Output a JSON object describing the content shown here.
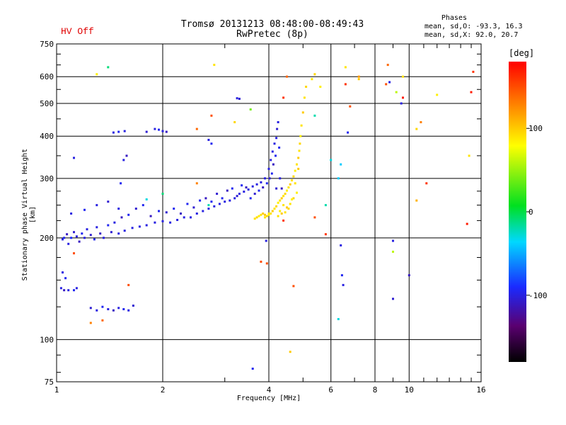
{
  "header": {
    "hv_status": "HV Off",
    "title_line1": "Tromsø 20131213 08:48:00-08:49:43",
    "title_line2": "RwPretec (8p)",
    "phases_title": "Phases",
    "phases_line1": "mean, sd,O: -93.3, 16.3",
    "phases_line2": "mean, sd,X:  92.0, 20.7"
  },
  "colors": {
    "hv_text": "#e00000",
    "grid": "#000000",
    "dominant_trace": "#1f3fe6",
    "f2_trace": "#e6e62a"
  },
  "chart_data": {
    "type": "scatter",
    "xlabel": "Frequency [MHz]",
    "ylabel": "Stationary phase Virtual Height [km]",
    "x_scale": "log",
    "y_scale": "log",
    "xlim": [
      1,
      16
    ],
    "ylim": [
      75,
      750
    ],
    "xticks": [
      1,
      2,
      4,
      6,
      8,
      10,
      16
    ],
    "xtick_labels": [
      "1",
      "2",
      "4",
      "6",
      "8",
      "10",
      "16"
    ],
    "yticks": [
      75,
      100,
      200,
      300,
      400,
      500,
      600,
      750
    ],
    "ytick_labels": [
      "75",
      "100",
      "200",
      "300",
      "400",
      "500",
      "600",
      "750"
    ],
    "grid": true,
    "colorbar": {
      "label": "[deg]",
      "range": [
        -180,
        180
      ],
      "ticks": [
        100,
        0,
        -100
      ],
      "tick_labels": [
        "100",
        "0",
        "-100"
      ]
    },
    "series": [
      {
        "points": [
          [
            1.04,
            198,
            -100
          ],
          [
            1.05,
            200,
            -95
          ],
          [
            1.07,
            205,
            -110
          ],
          [
            1.08,
            192,
            -100
          ],
          [
            1.1,
            200,
            -90
          ],
          [
            1.12,
            208,
            -105
          ],
          [
            1.14,
            202,
            -100
          ],
          [
            1.16,
            195,
            -110
          ],
          [
            1.18,
            206,
            -95
          ],
          [
            1.2,
            200,
            -100
          ],
          [
            1.22,
            212,
            -100
          ],
          [
            1.25,
            204,
            -105
          ],
          [
            1.28,
            198,
            -95
          ],
          [
            1.3,
            215,
            -100
          ],
          [
            1.33,
            206,
            -110
          ],
          [
            1.36,
            200,
            -100
          ],
          [
            1.4,
            218,
            -95
          ],
          [
            1.43,
            208,
            -105
          ],
          [
            1.46,
            222,
            -100
          ],
          [
            1.5,
            206,
            -100
          ],
          [
            1.53,
            230,
            -110
          ],
          [
            1.56,
            210,
            -100
          ],
          [
            1.6,
            234,
            -95
          ],
          [
            1.64,
            214,
            -100
          ],
          [
            1.68,
            244,
            -105
          ],
          [
            1.72,
            216,
            -100
          ],
          [
            1.76,
            250,
            -95
          ],
          [
            1.8,
            218,
            -100
          ],
          [
            1.85,
            232,
            -110
          ],
          [
            1.9,
            222,
            -100
          ],
          [
            1.95,
            240,
            -95
          ],
          [
            2.0,
            224,
            -100
          ],
          [
            2.05,
            238,
            -105
          ],
          [
            2.1,
            222,
            -100
          ],
          [
            2.15,
            244,
            -95
          ],
          [
            2.2,
            226,
            -100
          ],
          [
            2.25,
            236,
            -110
          ],
          [
            2.3,
            230,
            -100
          ],
          [
            2.35,
            252,
            -95
          ],
          [
            2.4,
            230,
            -100
          ],
          [
            2.45,
            246,
            -105
          ],
          [
            2.5,
            236,
            -100
          ],
          [
            2.55,
            258,
            -95
          ],
          [
            2.6,
            240,
            -100
          ],
          [
            2.65,
            262,
            -110
          ],
          [
            2.7,
            244,
            -100
          ],
          [
            2.75,
            256,
            -95
          ],
          [
            2.8,
            248,
            -100
          ],
          [
            2.85,
            270,
            -105
          ],
          [
            2.9,
            252,
            -100
          ],
          [
            2.95,
            262,
            -95
          ],
          [
            3.0,
            256,
            -100
          ],
          [
            3.05,
            276,
            -110
          ],
          [
            3.1,
            258,
            -100
          ],
          [
            3.15,
            280,
            -95
          ],
          [
            3.2,
            262,
            -100
          ],
          [
            3.25,
            266,
            -105
          ],
          [
            3.3,
            270,
            -100
          ],
          [
            3.35,
            286,
            -95
          ],
          [
            3.4,
            274,
            -100
          ],
          [
            3.45,
            282,
            -110
          ],
          [
            3.5,
            278,
            -100
          ],
          [
            3.55,
            262,
            -95
          ],
          [
            3.6,
            284,
            -100
          ],
          [
            3.65,
            270,
            -105
          ],
          [
            3.7,
            288,
            -100
          ],
          [
            3.75,
            276,
            -95
          ],
          [
            3.8,
            292,
            -100
          ],
          [
            3.85,
            282,
            -110
          ],
          [
            3.9,
            300,
            -100
          ],
          [
            3.95,
            290,
            -95
          ],
          [
            4.0,
            320,
            -100
          ],
          [
            4.02,
            300,
            -105
          ],
          [
            4.05,
            340,
            -100
          ],
          [
            4.08,
            310,
            -95
          ],
          [
            4.1,
            360,
            -100
          ],
          [
            4.12,
            330,
            -110
          ],
          [
            4.15,
            380,
            -100
          ],
          [
            4.18,
            350,
            -95
          ],
          [
            4.2,
            395,
            -100
          ],
          [
            4.22,
            420,
            -105
          ],
          [
            4.25,
            440,
            -100
          ],
          [
            4.28,
            370,
            -95
          ],
          [
            4.3,
            300,
            -100
          ],
          [
            4.35,
            280,
            -110
          ],
          [
            1.1,
            236,
            -100
          ],
          [
            1.2,
            242,
            -95
          ],
          [
            1.3,
            250,
            -100
          ],
          [
            1.4,
            256,
            -105
          ],
          [
            1.5,
            244,
            -100
          ],
          [
            1.52,
            290,
            -95
          ],
          [
            1.55,
            340,
            -100
          ],
          [
            1.58,
            350,
            -110
          ],
          [
            1.45,
            410,
            -100
          ],
          [
            1.5,
            412,
            -95
          ],
          [
            1.56,
            414,
            -100
          ],
          [
            1.8,
            412,
            -105
          ],
          [
            1.9,
            420,
            -100
          ],
          [
            1.95,
            418,
            -95
          ],
          [
            2.0,
            414,
            -100
          ],
          [
            2.05,
            412,
            -110
          ],
          [
            2.7,
            390,
            -100
          ],
          [
            2.75,
            380,
            -95
          ],
          [
            3.25,
            518,
            -100
          ],
          [
            3.3,
            516,
            -105
          ],
          [
            1.04,
            158,
            -100
          ],
          [
            1.06,
            152,
            -95
          ],
          [
            1.03,
            142,
            -100
          ],
          [
            1.05,
            140,
            -110
          ],
          [
            1.08,
            140,
            -100
          ],
          [
            1.12,
            140,
            -95
          ],
          [
            1.14,
            142,
            -100
          ],
          [
            1.25,
            124,
            -105
          ],
          [
            1.3,
            122,
            -100
          ],
          [
            1.35,
            125,
            -95
          ],
          [
            1.4,
            123,
            -100
          ],
          [
            1.45,
            122,
            -110
          ],
          [
            1.5,
            124,
            -100
          ],
          [
            1.55,
            123,
            -95
          ],
          [
            1.6,
            122,
            -100
          ],
          [
            1.65,
            126,
            -105
          ],
          [
            1.12,
            345,
            -100
          ],
          [
            3.6,
            82,
            -95
          ],
          [
            3.93,
            196,
            -100
          ],
          [
            4.2,
            280,
            -105
          ],
          [
            6.4,
            190,
            -100
          ],
          [
            6.45,
            155,
            -95
          ],
          [
            6.5,
            145,
            -100
          ],
          [
            9.0,
            132,
            -105
          ],
          [
            9.0,
            196,
            -100
          ],
          [
            6.7,
            410,
            -95
          ],
          [
            9.5,
            500,
            -100
          ],
          [
            10.0,
            155,
            -110
          ],
          [
            8.8,
            578,
            -100
          ]
        ]
      },
      {
        "points": [
          [
            3.65,
            228,
            90
          ],
          [
            3.7,
            230,
            95
          ],
          [
            3.75,
            232,
            85
          ],
          [
            3.8,
            234,
            90
          ],
          [
            3.85,
            236,
            100
          ],
          [
            3.9,
            230,
            90
          ],
          [
            3.95,
            232,
            95
          ],
          [
            4.0,
            234,
            85
          ],
          [
            4.05,
            236,
            90
          ],
          [
            4.1,
            240,
            100
          ],
          [
            4.15,
            244,
            90
          ],
          [
            4.2,
            248,
            95
          ],
          [
            4.25,
            254,
            85
          ],
          [
            4.3,
            258,
            90
          ],
          [
            4.35,
            262,
            100
          ],
          [
            4.4,
            266,
            90
          ],
          [
            4.45,
            270,
            95
          ],
          [
            4.5,
            276,
            85
          ],
          [
            4.55,
            282,
            90
          ],
          [
            4.6,
            288,
            100
          ],
          [
            4.65,
            296,
            90
          ],
          [
            4.7,
            304,
            95
          ],
          [
            4.75,
            316,
            85
          ],
          [
            4.8,
            330,
            90
          ],
          [
            4.85,
            345,
            100
          ],
          [
            4.88,
            362,
            90
          ],
          [
            4.9,
            380,
            95
          ],
          [
            4.92,
            400,
            85
          ],
          [
            4.95,
            430,
            90
          ],
          [
            5.0,
            470,
            100
          ],
          [
            5.05,
            520,
            90
          ],
          [
            5.1,
            560,
            95
          ],
          [
            4.3,
            240,
            85
          ],
          [
            4.4,
            250,
            90
          ],
          [
            4.5,
            246,
            100
          ],
          [
            4.6,
            252,
            90
          ],
          [
            4.7,
            262,
            95
          ],
          [
            4.8,
            272,
            85
          ],
          [
            4.25,
            232,
            90
          ],
          [
            4.35,
            236,
            100
          ],
          [
            4.45,
            238,
            90
          ],
          [
            4.55,
            244,
            95
          ],
          [
            4.65,
            260,
            85
          ],
          [
            4.75,
            290,
            90
          ],
          [
            4.85,
            320,
            100
          ],
          [
            5.3,
            590,
            90
          ],
          [
            5.4,
            610,
            95
          ],
          [
            5.6,
            560,
            85
          ],
          [
            6.6,
            640,
            90
          ],
          [
            7.2,
            590,
            100
          ],
          [
            9.6,
            600,
            90
          ],
          [
            10.5,
            420,
            95
          ],
          [
            12.0,
            530,
            85
          ],
          [
            14.8,
            350,
            90
          ],
          [
            4.6,
            92,
            100
          ],
          [
            2.8,
            650,
            90
          ],
          [
            3.2,
            440,
            95
          ],
          [
            1.3,
            610,
            85
          ],
          [
            4.0,
            236,
            90
          ],
          [
            3.9,
            234,
            100
          ]
        ]
      },
      {
        "points": [
          [
            1.4,
            640,
            -10
          ],
          [
            2.75,
            460,
            150
          ],
          [
            3.55,
            480,
            40
          ],
          [
            4.5,
            600,
            140
          ],
          [
            4.4,
            520,
            160
          ],
          [
            5.4,
            460,
            -20
          ],
          [
            6.0,
            340,
            -30
          ],
          [
            6.3,
            300,
            -40
          ],
          [
            6.6,
            570,
            160
          ],
          [
            6.8,
            490,
            150
          ],
          [
            7.2,
            600,
            120
          ],
          [
            8.7,
            650,
            140
          ],
          [
            9.2,
            540,
            60
          ],
          [
            9.6,
            520,
            170
          ],
          [
            8.6,
            570,
            150
          ],
          [
            10.8,
            440,
            130
          ],
          [
            11.2,
            290,
            160
          ],
          [
            14.6,
            220,
            170
          ],
          [
            15.0,
            540,
            170
          ],
          [
            15.2,
            620,
            160
          ],
          [
            1.12,
            180,
            150
          ],
          [
            1.35,
            114,
            140
          ],
          [
            1.25,
            112,
            130
          ],
          [
            1.6,
            145,
            150
          ],
          [
            2.5,
            290,
            130
          ],
          [
            2.5,
            420,
            140
          ],
          [
            4.4,
            225,
            160
          ],
          [
            5.4,
            230,
            150
          ],
          [
            5.8,
            250,
            -20
          ],
          [
            5.8,
            205,
            160
          ],
          [
            4.7,
            144,
            150
          ],
          [
            3.95,
            168,
            150
          ],
          [
            6.3,
            115,
            -30
          ],
          [
            6.4,
            330,
            -40
          ],
          [
            10.5,
            258,
            110
          ],
          [
            2.7,
            250,
            -20
          ],
          [
            2.0,
            270,
            -10
          ],
          [
            1.8,
            260,
            -30
          ],
          [
            9.0,
            182,
            60
          ],
          [
            3.8,
            170,
            150
          ]
        ]
      }
    ]
  }
}
